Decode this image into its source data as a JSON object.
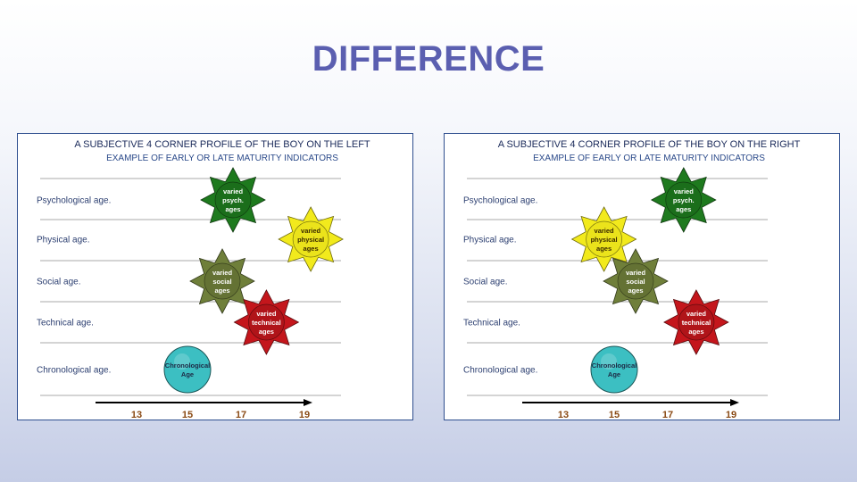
{
  "slide": {
    "title": "DIFFERENCE"
  },
  "rows": [
    "Psychological age.",
    "Physical age.",
    "Social age.",
    "Technical age.",
    "Chronological age."
  ],
  "ticks": [
    13,
    15,
    17,
    19
  ],
  "colors": {
    "psych": "#1e7a1e",
    "physical": "#f2ea1c",
    "social": "#6f7f3a",
    "technical": "#c4161c",
    "chronological": "#3cbfc2",
    "axis": "#000000",
    "row_line": "#8c8c8c"
  },
  "panels": [
    {
      "id": "left",
      "title": "A SUBJECTIVE 4 CORNER PROFILE OF THE BOY ON THE LEFT",
      "subtitle": "EXAMPLE OF EARLY OR LATE MATURITY INDICATORS",
      "markers": [
        {
          "key": "psych",
          "icon": "sun-starburst-icon",
          "row": 0,
          "age": 16.7,
          "lines": [
            "varied",
            "psych.",
            "ages"
          ]
        },
        {
          "key": "physical",
          "icon": "sun-starburst-icon",
          "row": 1,
          "age": 19.2,
          "lines": [
            "varied",
            "physical",
            "ages"
          ]
        },
        {
          "key": "social",
          "icon": "sun-starburst-icon",
          "row": 2,
          "age": 16.3,
          "lines": [
            "varied",
            "social",
            "ages"
          ]
        },
        {
          "key": "technical",
          "icon": "sun-starburst-icon",
          "row": 3,
          "age": 17.8,
          "lines": [
            "varied",
            "technical",
            "ages"
          ]
        },
        {
          "key": "chronological",
          "icon": "circle-icon",
          "row": 4,
          "age": 15.0,
          "lines": [
            "Chronological",
            "Age"
          ]
        }
      ]
    },
    {
      "id": "right",
      "title": "A SUBJECTIVE 4 CORNER PROFILE OF THE BOY ON THE RIGHT",
      "subtitle": "EXAMPLE OF EARLY OR LATE MATURITY INDICATORS",
      "markers": [
        {
          "key": "psych",
          "icon": "sun-starburst-icon",
          "row": 0,
          "age": 17.5,
          "lines": [
            "varied",
            "psych.",
            "ages"
          ]
        },
        {
          "key": "physical",
          "icon": "sun-starburst-icon",
          "row": 1,
          "age": 14.6,
          "lines": [
            "varied",
            "physical",
            "ages"
          ]
        },
        {
          "key": "social",
          "icon": "sun-starburst-icon",
          "row": 2,
          "age": 15.8,
          "lines": [
            "varied",
            "social",
            "ages"
          ]
        },
        {
          "key": "technical",
          "icon": "sun-starburst-icon",
          "row": 3,
          "age": 17.9,
          "lines": [
            "varied",
            "technical",
            "ages"
          ]
        },
        {
          "key": "chronological",
          "icon": "circle-icon",
          "row": 4,
          "age": 15.0,
          "lines": [
            "Chronological",
            "Age"
          ]
        }
      ]
    }
  ]
}
